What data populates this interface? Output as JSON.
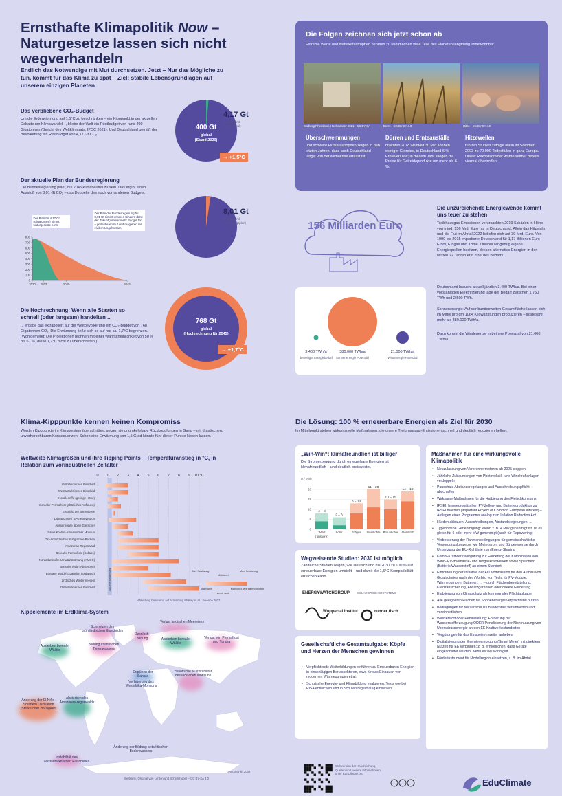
{
  "header": {
    "title": [
      "Ernsthafte Klimapolitik ",
      "Now",
      " – Naturgesetze lassen sich nicht wegverhandeln"
    ],
    "lead": "Endlich das Notwendige mit Mut durchsetzen. Jetzt – Nur das Mögliche zu tun, kommt für das Klima zu spät – Ziel: stabile Lebensgrundlagen auf unserem einzigen Planeten"
  },
  "budget": {
    "heading": "Das verbliebene CO₂-Budget",
    "text": "Um die Erderwärmung auf 1,5°C zu beschränken – ein Kipppunkt in der aktuellen Debatte um Klimawandel –, bliebe der Welt ein Restbudget von rund 400 Gigatonnen (Bericht des Weltklimarats, IPCC 2021). Und Deutschland gemäß der Bevölkerung ein Restbudget von 4,17 Gt CO₂",
    "pie_value": "400 Gt",
    "pie_scope": "global",
    "pie_note": "(Stand 2020)",
    "de_value": "4,17 Gt",
    "de_label": "Deutschland",
    "de_note": "(proportional)",
    "result": "→ +1,5°C"
  },
  "plan": {
    "heading": "Der aktuelle Plan der Bundesregierung",
    "text": "Die Bundesregierung plant, bis 2045 klimaneutral zu sein. Das ergibt einen Ausstoß von 8,01 Gt CO₂ – das Doppelte des noch vorhandenen Budgets.",
    "note_green": "Der Plan für 4,17 Gt (Gigatonnen) nimmt Naturgesetze ernst",
    "note_orange": "Der Plan der Bundesregierung für 8,01 Gt nimmt unseren Kindern (bzw. der Zukunft) immer mehr Budget fort – protestieren laut und reagieren mit zivilem Ungehorsam.",
    "de_value": "8,01 Gt",
    "de_label": "Deutschland",
    "de_note": "(Regierungsplan)"
  },
  "projection": {
    "heading": "Die Hochrechnung: Wenn alle Staaten so schnell (oder langsam) handelten ...",
    "text": "... ergäbe das extrapoliert auf die Weltbevölkerung ein CO₂-Budget von 768 Gigatonnen CO₂. Die Erwärmung ließe sich so auf nur ca. 1,7°C begrenzen. (Wohlgemerkt: Die Projektionen rechnen mit einer Wahrscheinlichkeit von 50 % bis 67 %, diese 1,7°C nicht zu überschreiten.)",
    "pie_value": "768 Gt",
    "pie_scope": "global",
    "pie_note": "(Hochrechnung für 2045)",
    "result": "→ +1,7°C"
  },
  "impacts": {
    "title": "Die Folgen zeichnen sich jetzt schon ab",
    "subtitle": "Extreme Werte und Naturkatastrophen nehmen zu und machen viele Teile des Planeten langfristig unbewohnbar",
    "captions": [
      "Stolberg/Rheinland, Hochwasser 2021 · CC BY-SA",
      "Dürre · CC BY-SA 4.0",
      "Hitze · CC BY-SA 4.0"
    ],
    "columns": [
      {
        "heading": "Überschwemmungen",
        "text": "und schwere Flutkatastrophen zeigen in den letzten Jahren, dass auch Deutschland längst von der Klimakrise erfasst ist."
      },
      {
        "heading": "Dürren und Ernteausfälle",
        "text": "brachten 2018 weltweit 30 Mio Tonnen weniger Getreide, in Deutschland 6 % Ernteverluste; in diesem Jahr stiegen die Preise für Getreideprodukte um mehr als 6 %."
      },
      {
        "heading": "Hitzewellen",
        "text": "führten Studien zufolge allein im Sommer 2003 zu 70.000 Todesfällen in ganz Europa. Dieser Rekordsommer wurde seither bereits viermal übertroffen."
      }
    ]
  },
  "energy_cost": {
    "amount": "156 Milliarden Euro",
    "heading": "Die unzureichende Energiewende kommt uns teuer zu stehen",
    "text": "Treibhausgas-Emissionen verursachten 2019 Schäden in Höhe von mind. 156 Mrd. Euro nur in Deutschland. Allein das Hitzejahr und die Flut im Ahrtal 2022 beliefen sich auf 30 Mrd. Euro. Von 1990 bis 2015 importierte Deutschland für 1,17 Billionen Euro Erdöl, Erdgas und Kohle. Obwohl wir genug eigene Energiequellen besitzen, decken alternative Energien in den letzten 22 Jahren erst 20% des Bedarfs."
  },
  "potentials": {
    "items": [
      {
        "value": "3.400 TWh/a",
        "label": "derzeitiger Energiebedarf"
      },
      {
        "value": "380.000 TWh/a",
        "label": "Sonnenenergie Potenzial"
      },
      {
        "value": "21.000 TWh/a",
        "label": "Windenergie Potenzial"
      }
    ],
    "texts": [
      "Deutschland braucht aktuell jährlich 3.400 TWh/a. Bei einer vollständigen Elektrifizierung läge der Bedarf zwischen 1.750 TWh und 2.500 TWh.",
      "Sonnenenergie: Auf der bundesweiten Gesamtfläche lassen sich im Mittel pro qm 1064 Kilowattstunden produzieren – insgesamt mehr als 380.000 TWh/a.",
      "Dazu kommt die Windenergie mit einem Potenzial von 21.000 TWh/a."
    ]
  },
  "tipping": {
    "heading": "Klima-Kipppunkte kennen keinen Kompromiss",
    "text": "Werden Kipppunkte im Klimasystem überschritten, setzen sie unumkehrbare Rückkopplungen in Gang – mit drastischen, unvorhersehbaren Konsequenzen. Schon eine Erwärmung von 1,5 Grad könnte fünf dieser Punkte kippen lassen.",
    "legend": [
      "Min. Schätzung",
      "Mittelwert",
      "Max. Schätzung",
      "stabil weit",
      "weder noch",
      "Kipppunkt sehr wahrscheinlich"
    ],
    "source": "Abbildung basierend auf Armstrong McKay et al., Science 2022"
  },
  "map": {
    "heading": "Kippelemente im Erdklima-System",
    "labels": [
      "Schmelzen des grönländischen Eisschildes",
      "Verlust arktischen Meereises",
      "Ozonloch-Bildung",
      "Absterben borealer Wälder",
      "Bildung atlantischen Tiefenwassers",
      "Absterben borealer Wälder",
      "Verlust von Permafrost und Tundra",
      "Ergrünen der Sahara",
      "Verlagerung des Westafrika-Monsuns",
      "chaotische Multistabilität des indischen Monsuns",
      "Änderung der El Niño-Southern Oscillation (Stärke oder Häufigkeit)",
      "Absterben des Amazonas-regenwalds",
      "Änderung der Bildung antarktischen Bodenwassers",
      "Instabilität des westantarktischen Eisschildes"
    ],
    "credit": "Lenton et al. 2008",
    "source": "Weltkarte, Original von Lenton und Schellnhuber – CC BY-SA 4.0"
  },
  "solution": {
    "heading": "Die Lösung: 100 % erneuerbare Energien als Ziel für 2030",
    "text": "Im Mittelpunkt stehen wirkungsvolle Maßnahmen, die unsere Treibhausgas-Emissionen schnell und deutlich reduzieren helfen.",
    "costs": {
      "title": "„Win-Win“: klimafreundlich ist billiger",
      "text": "Die Stromerzeugung durch erneuerbare Energien ist klimafreundlich – und deutlich preiswerter."
    },
    "studies": {
      "title": "Wegweisende Studien: 2030 ist möglich",
      "text": "Zahlreiche Studien zeigen, wie Deutschland bis 2030 zu 100 % auf erneuerbare Energien umstellt – und damit die 1,5°C-Kompatibilität erreichen kann.",
      "logos": [
        "ENERGYWATCHGROUP",
        "SOLARSPEICHERSYSTEME",
        "Wuppertal Institut",
        "runder tisch"
      ]
    },
    "society": {
      "title": "Gesellschaftliche Gesamtaufgabe: Köpfe und Herzen der Menschen gewinnen",
      "bullets": [
        "Verpflichtende Weiterbildungen einführen zu Erneuerbaren Energien in einschlägigen Berufssektoren, etwa für das Einbauen von modernen Wärmepumpen et al.",
        "Schulische Energie- und Klimabildung evaluieren: Tests wie bei PISA entwickeln und in Schulen regelmäßig einsetzen."
      ]
    },
    "measures": {
      "title": "Maßnahmen für eine wirkungsvolle Klimapolitik",
      "items": [
        "Neuzulassung von Verbrennermotoren ab 2025 stoppen",
        "Jährliche Zubaumengen von Photovoltaik- und Windkraftanlagen verdoppeln",
        "Pauschale Abstandsregelungen und Ausschreibungspflicht abschaffen",
        "Wirksame Maßnahmen für die Halbierung des Fleischkonsums",
        "IPSEI: Innereuropäischen PV-Zellen- und Batterieproduktion zu IPSEI machen (Important Project of Common European Interest) – Auflagen eines Programms analog zum Inflation Reduction Act",
        "Hürden abbauen: Ausschreibungen, Abstandsregelungen, ...",
        "Typenoffene Genehmigung: Wenn z. B. 4 MW genehmigt ist, ist es gleich für 6 oder mehr MW genehmigt (auch für Repowering)",
        "Verbesserung der Rahmenbedingungen für gemeinschaftliche Versorgungskonzepte wie Mieterstrom und Bürgerenergie durch Umsetzung der EU-Richtlinie zum EnergySharing",
        "Kombi-Kraftwerksvergütung zur Förderung der Kombination von Wind-/PV-/Biomasse- und Biogaskraftwerken sowie Speichern (Batterie/Wasserstoff) an einem Standort",
        "Einforderung der Initiative der EU Kommission für den Aufbau von Gigafactories nach dem Vorbild von Tesla für PV-Module, Wärmepumpen, Batterien, ... – durch Flächenbereitstellung, Kreditabsicherung, Absatzgarantien oder direkte Förderung",
        "Etablierung von Klimaschutz als kommunaler Pflichtaufgabe",
        "Alle geeigneten Flächen für Sonnenenergie verpflichtend nutzen",
        "Bedingungen für Netzanschluss bundesweit vereinfachen und vereinheitlichen",
        "Wasserstoff oder Penalisierung: Förderung der Wasserstofferzeugung ODER Penalisierung der Nichtnutzung von Überschussenergie an den EE-Kraftwerksstandorten",
        "Vergütungen für das Einspeisen weiter anheben",
        "Digitalisierung der Energieversorgung (Smart Meter) mit direktem Nutzen für EE verbinden: z. B. ermöglichen, dass Geräte eingeschaltet werden, wenn es viel Wind gibt",
        "Förderinstrument für Modellregion einsetzen, z. B. im Ahrtal"
      ]
    }
  },
  "footer": {
    "web": "Webversion der Handreichung, Quellen und weitere Informationen unter EduClimate.org",
    "logo": "EduClimate"
  },
  "chart_data": [
    {
      "type": "area",
      "x": [
        2020,
        2021,
        2022,
        2023,
        2024,
        2025,
        2026,
        2027,
        2028,
        2029,
        2030,
        2031,
        2032,
        2033,
        2034,
        2035,
        2036,
        2037,
        2038,
        2039,
        2040,
        2041,
        2042,
        2043,
        2044,
        2045
      ],
      "series": [
        {
          "color": "#ef7f55",
          "values": [
            760,
            770,
            740,
            700,
            660,
            620,
            580,
            540,
            495,
            450,
            415,
            380,
            340,
            300,
            270,
            240,
            210,
            180,
            150,
            120,
            95,
            70,
            50,
            30,
            15,
            0
          ]
        },
        {
          "color": "#3ba98b",
          "values": [
            760,
            770,
            720,
            600,
            430,
            250,
            100,
            0,
            null,
            null,
            null,
            null,
            null,
            null,
            null,
            null,
            null,
            null,
            null,
            null,
            null,
            null,
            null,
            null,
            null,
            null
          ]
        }
      ],
      "xlim": [
        2020,
        2045
      ],
      "xticks": [
        2020,
        2023,
        2029,
        2045
      ],
      "ylim": [
        0,
        800
      ],
      "yticks": [
        0,
        100,
        200,
        300,
        400,
        500,
        600,
        700,
        800
      ]
    },
    {
      "type": "hrange",
      "title": "Weltweite Klimagrößen und ihre Tipping Points – Temperaturanstieg in °C, in Relation zum vorindustriellen Zeitalter",
      "categories": [
        "Grönländisches Eisschild",
        "Westantarktisches Eisschild",
        "Korallenriffe (geringe Höhe)",
        "Borealer Permafrost (plötzliches Auftauen)",
        "Eisschild der Barentssee",
        "Labradorsee / SPG Konvektion",
        "Ausserpolare alpine Gletscher",
        "Sahel & West-Afrikanischer Monsun",
        "Ost-Antarktisches Subglaziale Becken",
        "Amazonas-Regenwald",
        "Borealer Permafrost (Kollaps)",
        "Nordatlantische Umwälzströmung (AMOC)",
        "Borealer Wald (Absterben)",
        "Borealer Wald (Expansion nordwärts)",
        "arktisches Wintermeereis",
        "Ostantarktisches Eisschild"
      ],
      "low": [
        0.8,
        1.0,
        1.0,
        1.0,
        1.5,
        1.1,
        1.5,
        2.0,
        2.0,
        2.0,
        3.0,
        1.4,
        1.4,
        1.5,
        4.5,
        5.0
      ],
      "high": [
        3.0,
        3.0,
        2.0,
        2.3,
        1.7,
        3.8,
        3.0,
        3.5,
        6.0,
        6.0,
        6.0,
        8.0,
        5.0,
        7.2,
        8.7,
        10.0
      ],
      "color": "#ef7f55",
      "current_warming": 1.2,
      "current_label": "Aktuelle Erwärmung",
      "xlim": [
        0,
        10
      ],
      "xticks": [
        0,
        1,
        2,
        3,
        4,
        5,
        6,
        7,
        8,
        9,
        {
          "value": 10,
          "label": "10 °C"
        }
      ]
    },
    {
      "type": "vrange",
      "ylabel": "ct / kWh",
      "categories": [
        "Wind (onshore)",
        "Solar",
        "Erdgas",
        "Steinkohle",
        "Braunkohle",
        "Atomkraft"
      ],
      "low": [
        4,
        2,
        8,
        11,
        10,
        14
      ],
      "high": [
        8,
        6,
        13,
        20,
        15,
        19
      ],
      "value_labels": [
        "4 – 8",
        "2 – 6",
        "8 – 13",
        "11 – 20",
        "10 – 15",
        "14 – 19"
      ],
      "low_colors": [
        "#3ba98b",
        "#3ba98b",
        "#ef7f55",
        "#ef7f55",
        "#ef7f55",
        "#ef7f55"
      ],
      "high_colors": [
        "#b7e2d4",
        "#b7e2d4",
        "#f8c6b0",
        "#f8c6b0",
        "#f8c6b0",
        "#f8c6b0"
      ],
      "ylim": [
        0,
        20
      ],
      "yticks": [
        0,
        5,
        10,
        15,
        20
      ]
    }
  ]
}
